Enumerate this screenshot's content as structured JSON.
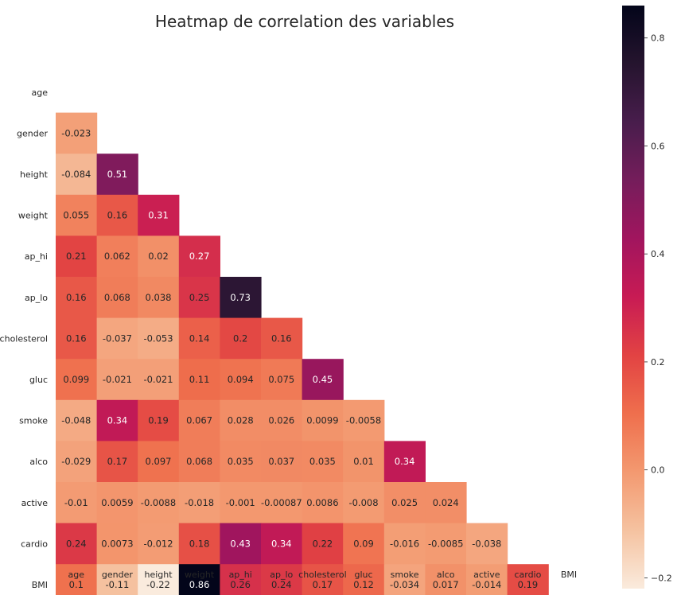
{
  "chart_data": {
    "type": "heatmap",
    "title": "Heatmap de correlation des variables",
    "variables": [
      "age",
      "gender",
      "height",
      "weight",
      "ap_hi",
      "ap_lo",
      "cholesterol",
      "gluc",
      "smoke",
      "alco",
      "active",
      "cardio",
      "BMI"
    ],
    "mask": "upper-triangle-including-diagonal",
    "cell_labels": [
      [],
      [
        "-0.023"
      ],
      [
        "-0.084",
        "0.51"
      ],
      [
        "0.055",
        "0.16",
        "0.31"
      ],
      [
        "0.21",
        "0.062",
        "0.02",
        "0.27"
      ],
      [
        "0.16",
        "0.068",
        "0.038",
        "0.25",
        "0.73"
      ],
      [
        "0.16",
        "-0.037",
        "-0.053",
        "0.14",
        "0.2",
        "0.16"
      ],
      [
        "0.099",
        "-0.021",
        "-0.021",
        "0.11",
        "0.094",
        "0.075",
        "0.45"
      ],
      [
        "-0.048",
        "0.34",
        "0.19",
        "0.067",
        "0.028",
        "0.026",
        "0.0099",
        "-0.0058"
      ],
      [
        "-0.029",
        "0.17",
        "0.097",
        "0.068",
        "0.035",
        "0.037",
        "0.035",
        "0.01",
        "0.34"
      ],
      [
        "-0.01",
        "0.0059",
        "-0.0088",
        "-0.018",
        "-0.001",
        "-0.00087",
        "0.0086",
        "-0.008",
        "0.025",
        "0.024"
      ],
      [
        "0.24",
        "0.0073",
        "-0.012",
        "0.18",
        "0.43",
        "0.34",
        "0.22",
        "0.09",
        "-0.016",
        "-0.0085",
        "-0.038"
      ],
      [
        "0.1",
        "-0.11",
        "-0.22",
        "0.86",
        "0.26",
        "0.24",
        "0.17",
        "0.12",
        "-0.034",
        "0.017",
        "-0.014",
        "0.19"
      ]
    ],
    "colormap": "rocket_r",
    "colorbar": {
      "vmin": -0.22,
      "vmax": 0.86,
      "tick_labels": [
        "−0.2",
        "0.0",
        "0.2",
        "0.4",
        "0.6",
        "0.8"
      ],
      "ticks": [
        -0.2,
        0.0,
        0.2,
        0.4,
        0.6,
        0.8
      ]
    },
    "legend_placement": "right"
  }
}
